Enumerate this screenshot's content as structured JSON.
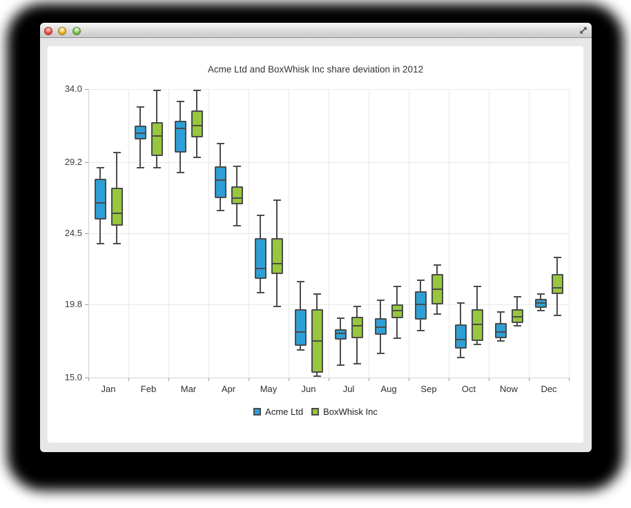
{
  "window": {
    "controls": {
      "close_color": "#ea544a",
      "minimize_color": "#f3ac2c",
      "zoom_color": "#80bb51"
    }
  },
  "chart_data": {
    "type": "boxplot",
    "title": "Acme Ltd and BoxWhisk Inc share deviation in 2012",
    "categories": [
      "Jan",
      "Feb",
      "Mar",
      "Apr",
      "May",
      "Jun",
      "Jul",
      "Aug",
      "Sep",
      "Oct",
      "Now",
      "Dec"
    ],
    "y_ticks": [
      "34.0",
      "29.2",
      "24.5",
      "19.8",
      "15.0"
    ],
    "y_tick_values": [
      34.0,
      29.2,
      24.5,
      19.8,
      15.0
    ],
    "ylim": [
      15.0,
      34.0
    ],
    "grid": true,
    "legend_position": "bottom",
    "colors": {
      "box_border": "#4a4a4a",
      "gridline": "#e8e8e8",
      "axis": "#cfcfcf"
    },
    "series": [
      {
        "name": "Acme Ltd",
        "color": "#2E9FD6",
        "note": "values are [low, q1, median, q3, high]",
        "values": [
          [
            23.8,
            25.4,
            26.5,
            28.1,
            28.8
          ],
          [
            28.8,
            30.7,
            31.1,
            31.6,
            32.8
          ],
          [
            28.5,
            29.8,
            31.4,
            31.9,
            33.2
          ],
          [
            26.0,
            26.8,
            28.0,
            28.9,
            30.4
          ],
          [
            20.6,
            21.5,
            22.2,
            24.2,
            25.7
          ],
          [
            16.8,
            17.1,
            18.0,
            19.5,
            21.3
          ],
          [
            15.8,
            17.5,
            17.9,
            18.2,
            18.9
          ],
          [
            16.6,
            17.8,
            18.3,
            18.9,
            20.1
          ],
          [
            18.1,
            18.8,
            19.8,
            20.7,
            21.4
          ],
          [
            16.3,
            16.9,
            17.5,
            18.5,
            19.9
          ],
          [
            17.4,
            17.6,
            18.0,
            18.6,
            19.3
          ],
          [
            19.4,
            19.6,
            19.9,
            20.2,
            20.5
          ]
        ]
      },
      {
        "name": "BoxWhisk Inc",
        "color": "#96C73E",
        "values": [
          [
            23.8,
            25.0,
            25.8,
            27.5,
            29.8
          ],
          [
            28.8,
            29.6,
            30.9,
            31.8,
            33.9
          ],
          [
            29.5,
            30.8,
            31.6,
            32.6,
            33.9
          ],
          [
            25.0,
            26.4,
            26.8,
            27.6,
            28.9
          ],
          [
            19.7,
            21.8,
            22.5,
            24.2,
            26.7
          ],
          [
            15.1,
            15.3,
            17.4,
            19.5,
            20.5
          ],
          [
            15.9,
            17.6,
            18.4,
            19.0,
            19.7
          ],
          [
            17.6,
            18.9,
            19.4,
            19.8,
            21.0
          ],
          [
            19.2,
            19.8,
            20.8,
            21.8,
            22.4
          ],
          [
            17.2,
            17.4,
            18.5,
            19.5,
            21.0
          ],
          [
            18.4,
            18.6,
            19.0,
            19.5,
            20.3
          ],
          [
            19.1,
            20.5,
            20.9,
            21.8,
            22.9
          ]
        ]
      }
    ]
  }
}
